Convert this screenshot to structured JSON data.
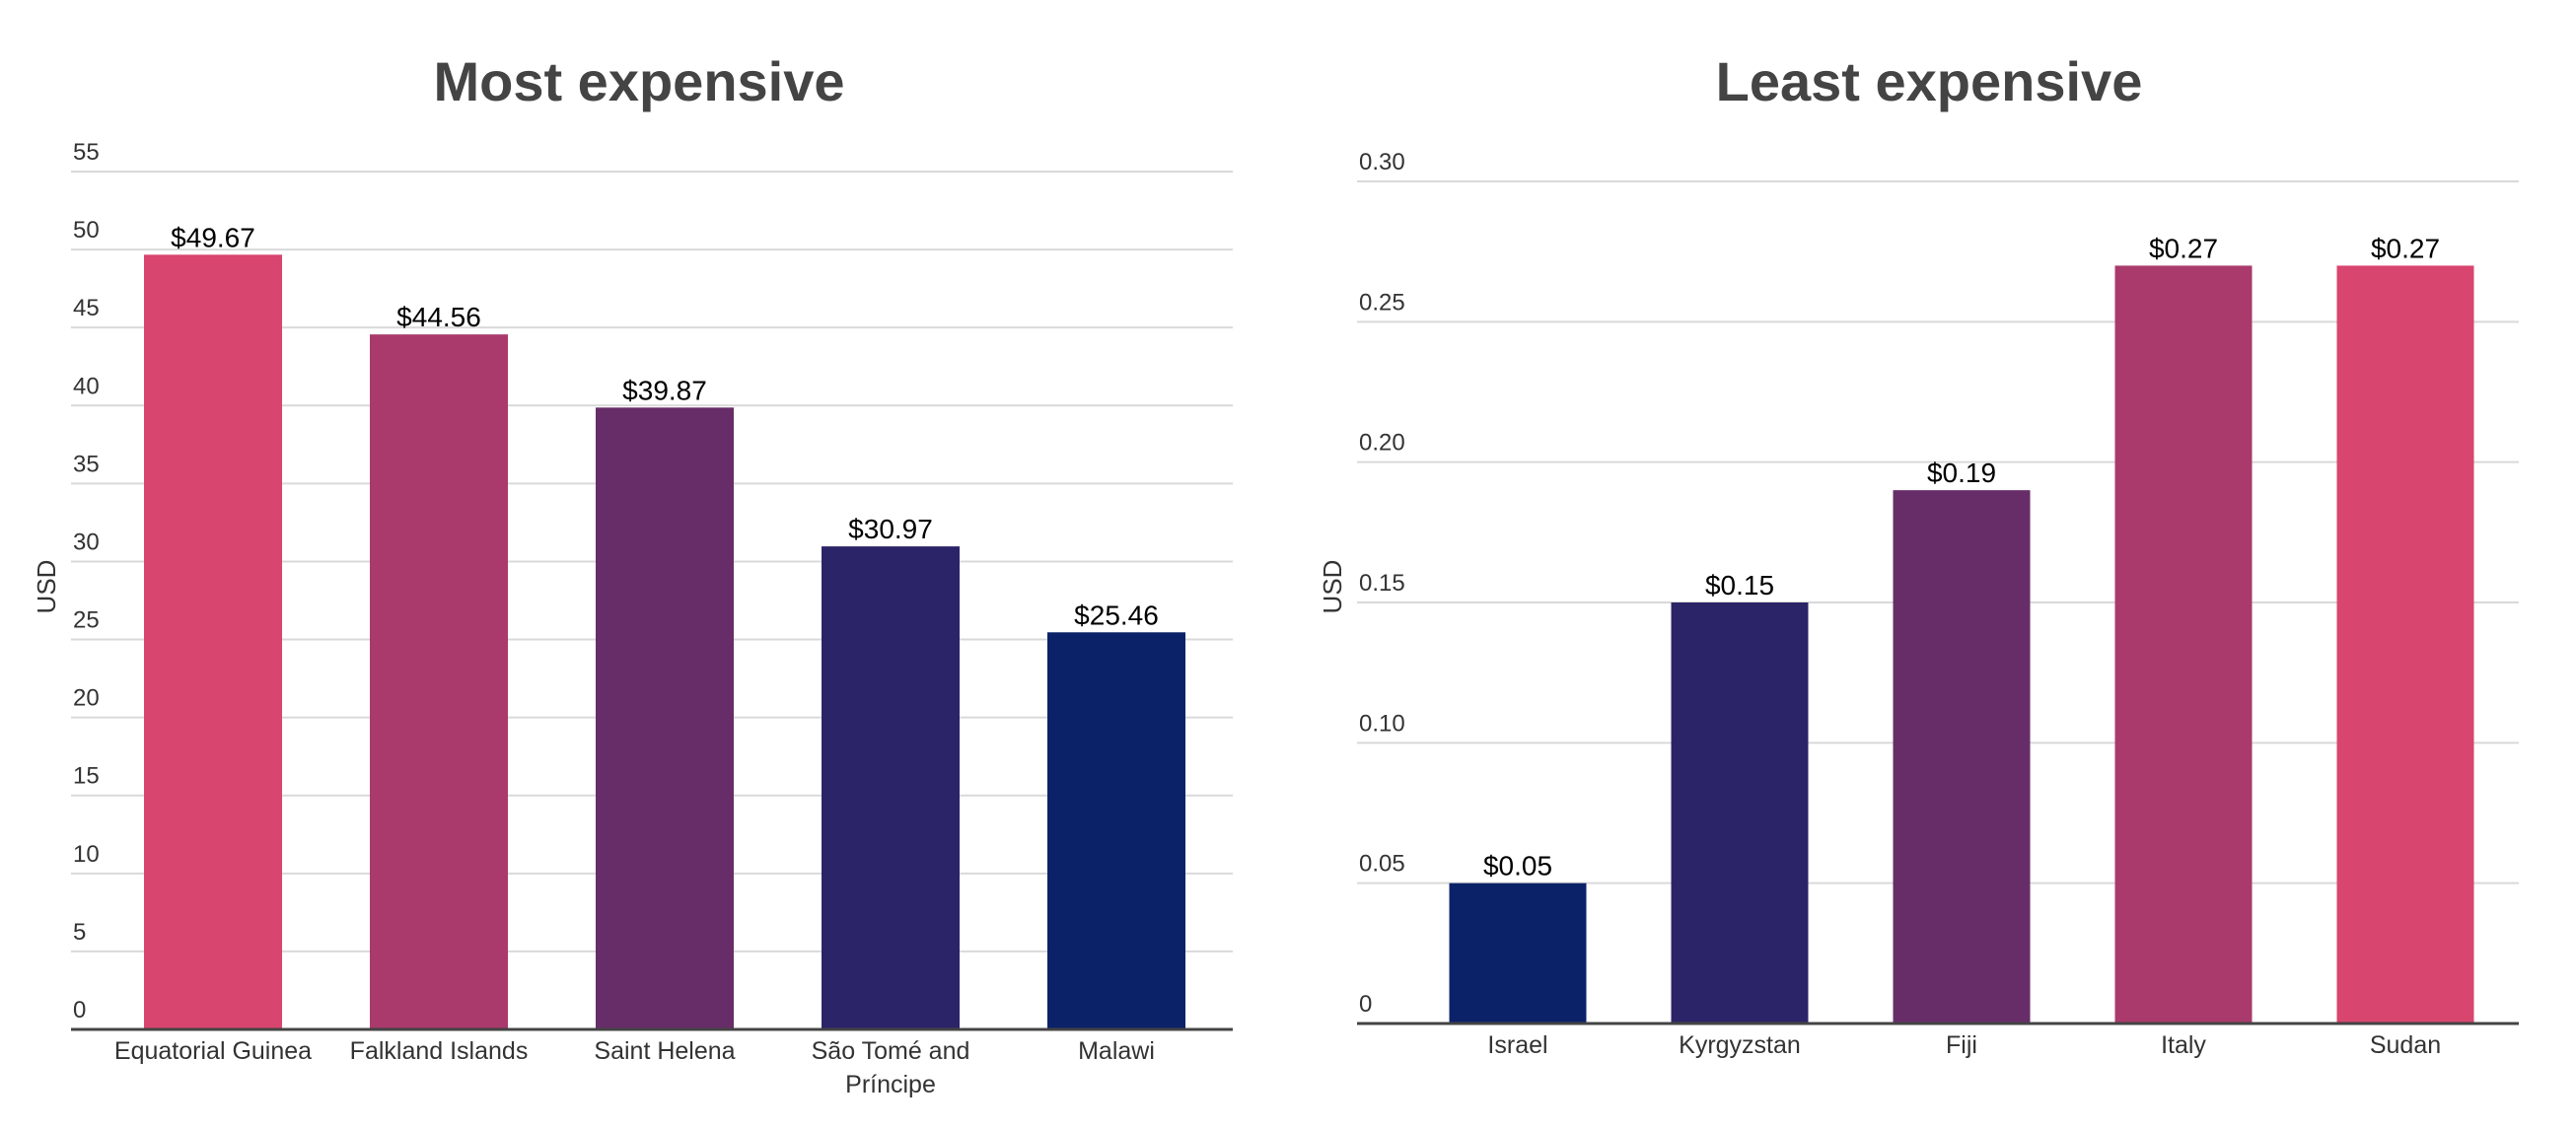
{
  "chart_data": [
    {
      "type": "bar",
      "title": "Most expensive",
      "ylabel": "USD",
      "ylim": [
        0,
        55
      ],
      "yticks": [
        0,
        5,
        10,
        15,
        20,
        25,
        30,
        35,
        40,
        45,
        50,
        55
      ],
      "ytick_labels": [
        "0",
        "5",
        "10",
        "15",
        "20",
        "25",
        "30",
        "35",
        "40",
        "45",
        "50",
        "55"
      ],
      "categories": [
        "Equatorial Guinea",
        "Falkland Islands",
        "Saint Helena",
        "São Tomé and Príncipe",
        "Malawi"
      ],
      "category_lines": [
        [
          "Equatorial Guinea"
        ],
        [
          "Falkland Islands"
        ],
        [
          "Saint Helena"
        ],
        [
          "São Tomé and",
          "Príncipe"
        ],
        [
          "Malawi"
        ]
      ],
      "values": [
        49.67,
        44.56,
        39.87,
        30.97,
        25.46
      ],
      "data_labels": [
        "$49.67",
        "$44.56",
        "$39.87",
        "$30.97",
        "$25.46"
      ],
      "colors": [
        "#d8456f",
        "#a93a6b",
        "#672d68",
        "#2c2468",
        "#0b2268"
      ],
      "grid": true,
      "legend": "none"
    },
    {
      "type": "bar",
      "title": "Least expensive",
      "ylabel": "USD",
      "ylim": [
        0,
        0.3
      ],
      "yticks": [
        0,
        0.05,
        0.1,
        0.15,
        0.2,
        0.25,
        0.3
      ],
      "ytick_labels": [
        "0",
        "0.05",
        "0.10",
        "0.15",
        "0.20",
        "0.25",
        "0.30"
      ],
      "categories": [
        "Israel",
        "Kyrgyzstan",
        "Fiji",
        "Italy",
        "Sudan"
      ],
      "category_lines": [
        [
          "Israel"
        ],
        [
          "Kyrgyzstan"
        ],
        [
          "Fiji"
        ],
        [
          "Italy"
        ],
        [
          "Sudan"
        ]
      ],
      "values": [
        0.05,
        0.15,
        0.19,
        0.27,
        0.27
      ],
      "data_labels": [
        "$0.05",
        "$0.15",
        "$0.19",
        "$0.27",
        "$0.27"
      ],
      "colors": [
        "#0b2268",
        "#2c2468",
        "#672d68",
        "#a93a6b",
        "#d8456f"
      ],
      "grid": true,
      "legend": "none"
    }
  ]
}
